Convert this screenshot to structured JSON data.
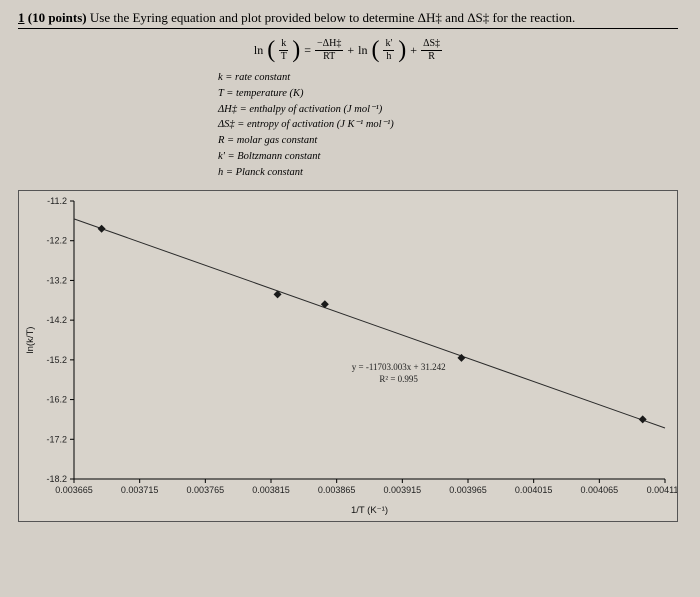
{
  "question": {
    "number": "1",
    "points": "(10 points)",
    "text": "Use the Eyring equation and plot provided below to determine ΔH‡ and ΔS‡ for the reaction."
  },
  "equation": {
    "lhs_ln": "ln",
    "frac1_top": "k",
    "frac1_bot": "T",
    "eq": "=",
    "frac2_top": "−ΔH‡",
    "frac2_bot": "RT",
    "plus1": "+",
    "ln2": "ln",
    "frac3_top": "k'",
    "frac3_bot": "h",
    "plus2": "+",
    "frac4_top": "ΔS‡",
    "frac4_bot": "R"
  },
  "definitions": [
    "k = rate constant",
    "T = temperature (K)",
    "ΔH‡ = enthalpy of activation (J mol⁻¹)",
    "ΔS‡ = entropy of activation (J K⁻¹ mol⁻¹)",
    "R = molar gas constant",
    "k' = Boltzmann constant",
    "h = Planck constant"
  ],
  "chart": {
    "type": "scatter-with-fit",
    "xlabel": "1/T (K⁻¹)",
    "ylabel": "ln(k/T)",
    "x_ticks": [
      0.003665,
      0.003715,
      0.003765,
      0.003815,
      0.003865,
      0.003915,
      0.003965,
      0.004015,
      0.004065,
      0.004115
    ],
    "y_ticks": [
      -18.2,
      -17.2,
      -16.2,
      -15.2,
      -14.2,
      -13.2,
      -12.2,
      -11.2
    ],
    "xlim": [
      0.003665,
      0.004115
    ],
    "ylim": [
      -18.2,
      -11.2
    ],
    "tick_fontsize": 9,
    "label_fontsize": 9.5,
    "background": "#d8d3cb",
    "axis_color": "#000000",
    "line_color": "#2a2a2a",
    "marker_color": "#1a1a1a",
    "marker_style": "diamond",
    "marker_size": 4,
    "line_width": 1,
    "data_points": [
      {
        "x": 0.003686,
        "y": -11.9
      },
      {
        "x": 0.00382,
        "y": -13.55
      },
      {
        "x": 0.003856,
        "y": -13.8
      },
      {
        "x": 0.00396,
        "y": -15.15
      },
      {
        "x": 0.004098,
        "y": -16.7
      }
    ],
    "fit": {
      "slope": -11703.003,
      "intercept": 31.242,
      "equation_text": "y = -11703.003x + 31.242",
      "r2_text": "R² = 0.995"
    }
  }
}
